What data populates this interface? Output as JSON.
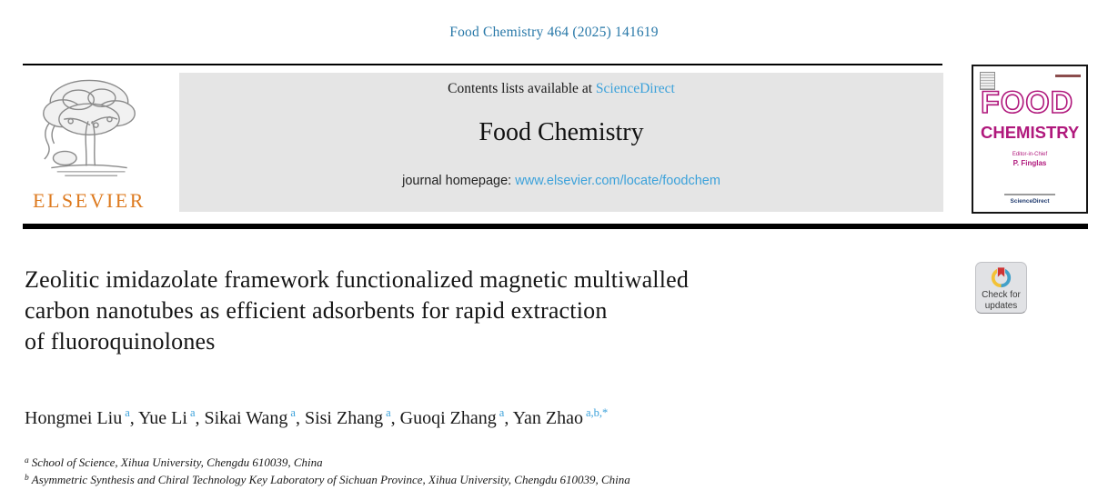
{
  "journal_ref": "Food Chemistry 464 (2025) 141619",
  "header": {
    "contents_prefix": "Contents lists available at ",
    "sciencedirect_label": "ScienceDirect",
    "journal_title": "Food Chemistry",
    "homepage_prefix": "journal homepage: ",
    "homepage_url": "www.elsevier.com/locate/foodchem",
    "elsevier_label": "ELSEVIER"
  },
  "cover": {
    "line1": "FOOD",
    "line2": "CHEMISTRY",
    "editor_label": "Editor-in-Chief",
    "editor_name": "P. Finglas",
    "footer": "ScienceDirect"
  },
  "badge": {
    "line1": "Check for",
    "line2": "updates"
  },
  "article": {
    "title_lines": [
      "Zeolitic imidazolate framework functionalized magnetic multiwalled",
      "carbon nanotubes as efficient adsorbents for rapid extraction",
      "of fluoroquinolones"
    ]
  },
  "authors_separator": ", ",
  "authors": [
    {
      "name": "Hongmei Liu",
      "sup": "a"
    },
    {
      "name": "Yue Li",
      "sup": "a"
    },
    {
      "name": "Sikai Wang",
      "sup": "a"
    },
    {
      "name": "Sisi Zhang",
      "sup": "a"
    },
    {
      "name": "Guoqi Zhang",
      "sup": "a"
    },
    {
      "name": "Yan Zhao",
      "sup": "a,b,*"
    }
  ],
  "affiliations": [
    {
      "sup": "a",
      "text": "School of Science, Xihua University, Chengdu 610039, China"
    },
    {
      "sup": "b",
      "text": "Asymmetric Synthesis and Chiral Technology Key Laboratory of Sichuan Province, Xihua University, Chengdu 610039, China"
    }
  ],
  "colors": {
    "citation_blue": "#2878a8",
    "link_blue": "#3ba1da",
    "elsevier_orange": "#dd7a1f",
    "cover_magenta": "#b0187c",
    "banner_gray": "#e5e5e5",
    "crossmark_yellow": "#f3c236",
    "crossmark_blue": "#42a0c8",
    "crossmark_red": "#cf3434"
  }
}
